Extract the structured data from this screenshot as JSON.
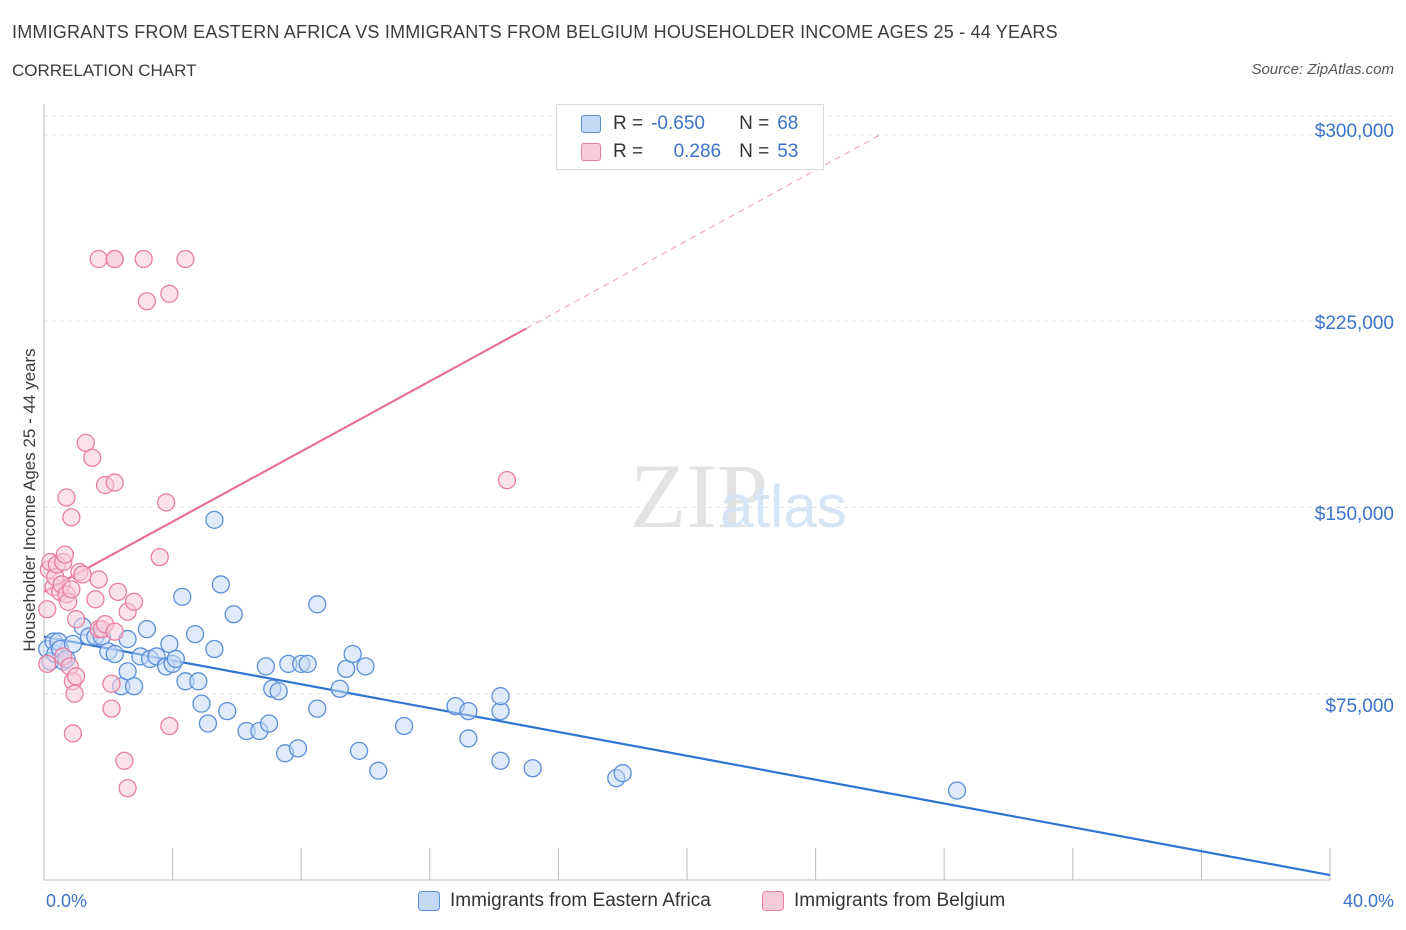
{
  "header": {
    "title": "IMMIGRANTS FROM EASTERN AFRICA VS IMMIGRANTS FROM BELGIUM HOUSEHOLDER INCOME AGES 25 - 44 YEARS",
    "subtitle": "CORRELATION CHART",
    "source": "Source: ZipAtlas.com"
  },
  "legend": {
    "rows": [
      {
        "r_label": "R =",
        "r_value": "-0.650",
        "n_label": "N =",
        "n_value": "68",
        "color": "#5b8fd8",
        "fill": "#c5d8f5"
      },
      {
        "r_label": "R =",
        "r_value": "0.286",
        "n_label": "N =",
        "n_value": "53",
        "color": "#e87fa3",
        "fill": "#f8cbd9"
      }
    ]
  },
  "watermark": {
    "zip": "ZIP",
    "atlas": "atlas"
  },
  "chart_data": {
    "type": "scatter",
    "title": "IMMIGRANTS FROM EASTERN AFRICA VS IMMIGRANTS FROM BELGIUM HOUSEHOLDER INCOME AGES 25 - 44 YEARS",
    "xlabel": "",
    "ylabel": "Householder Income Ages 25 - 44 years",
    "xlim": [
      0,
      40
    ],
    "ylim": [
      0,
      310000
    ],
    "x_tick_labels": [
      "0.0%",
      "40.0%"
    ],
    "y_ticks": [
      75000,
      150000,
      225000,
      300000
    ],
    "y_tick_labels": [
      "$75,000",
      "$150,000",
      "$225,000",
      "$300,000"
    ],
    "grid": true,
    "series": [
      {
        "name": "Immigrants from Eastern Africa",
        "color": "#5b8fd8",
        "fill": "#c5d8f5",
        "points": [
          [
            0.1,
            93000
          ],
          [
            0.2,
            88000
          ],
          [
            0.3,
            96000
          ],
          [
            0.35,
            91000
          ],
          [
            0.45,
            96000
          ],
          [
            0.5,
            93000
          ],
          [
            0.6,
            88000
          ],
          [
            0.7,
            89000
          ],
          [
            0.9,
            95000
          ],
          [
            1.2,
            102000
          ],
          [
            1.4,
            98000
          ],
          [
            1.6,
            98000
          ],
          [
            1.8,
            98000
          ],
          [
            2.0,
            92000
          ],
          [
            2.2,
            91000
          ],
          [
            2.4,
            78000
          ],
          [
            2.6,
            84000
          ],
          [
            2.6,
            97000
          ],
          [
            2.8,
            78000
          ],
          [
            3.0,
            90000
          ],
          [
            3.2,
            101000
          ],
          [
            3.3,
            89000
          ],
          [
            3.5,
            90000
          ],
          [
            3.8,
            86000
          ],
          [
            3.9,
            95000
          ],
          [
            4.0,
            87000
          ],
          [
            4.1,
            89000
          ],
          [
            4.3,
            114000
          ],
          [
            4.4,
            80000
          ],
          [
            4.7,
            99000
          ],
          [
            4.8,
            80000
          ],
          [
            4.9,
            71000
          ],
          [
            5.1,
            63000
          ],
          [
            5.3,
            93000
          ],
          [
            5.5,
            119000
          ],
          [
            5.9,
            107000
          ],
          [
            5.7,
            68000
          ],
          [
            6.3,
            60000
          ],
          [
            6.7,
            60000
          ],
          [
            6.9,
            86000
          ],
          [
            7.0,
            63000
          ],
          [
            7.1,
            77000
          ],
          [
            7.3,
            76000
          ],
          [
            7.5,
            51000
          ],
          [
            7.6,
            87000
          ],
          [
            7.9,
            53000
          ],
          [
            8.0,
            87000
          ],
          [
            8.2,
            87000
          ],
          [
            8.5,
            69000
          ],
          [
            8.5,
            111000
          ],
          [
            9.2,
            77000
          ],
          [
            9.4,
            85000
          ],
          [
            9.6,
            91000
          ],
          [
            9.8,
            52000
          ],
          [
            10.0,
            86000
          ],
          [
            10.4,
            44000
          ],
          [
            11.2,
            62000
          ],
          [
            12.8,
            70000
          ],
          [
            13.2,
            68000
          ],
          [
            13.2,
            57000
          ],
          [
            14.2,
            48000
          ],
          [
            14.2,
            68000
          ],
          [
            14.2,
            74000
          ],
          [
            15.2,
            45000
          ],
          [
            17.8,
            41000
          ],
          [
            18.0,
            43000
          ],
          [
            28.4,
            36000
          ],
          [
            5.3,
            145000
          ]
        ]
      },
      {
        "name": "Immigrants from Belgium",
        "color": "#e87fa3",
        "fill": "#f8cbd9",
        "points": [
          [
            0.1,
            87000
          ],
          [
            0.1,
            109000
          ],
          [
            0.15,
            125000
          ],
          [
            0.2,
            128000
          ],
          [
            0.3,
            118000
          ],
          [
            0.35,
            122000
          ],
          [
            0.4,
            127000
          ],
          [
            0.5,
            116000
          ],
          [
            0.55,
            119000
          ],
          [
            0.6,
            90000
          ],
          [
            0.6,
            128000
          ],
          [
            0.65,
            131000
          ],
          [
            0.7,
            115000
          ],
          [
            0.7,
            154000
          ],
          [
            0.75,
            112000
          ],
          [
            0.8,
            86000
          ],
          [
            0.85,
            146000
          ],
          [
            0.85,
            117000
          ],
          [
            0.9,
            59000
          ],
          [
            0.9,
            80000
          ],
          [
            0.95,
            75000
          ],
          [
            1.0,
            82000
          ],
          [
            1.0,
            105000
          ],
          [
            1.1,
            124000
          ],
          [
            1.2,
            123000
          ],
          [
            1.3,
            176000
          ],
          [
            1.5,
            170000
          ],
          [
            1.6,
            113000
          ],
          [
            1.7,
            121000
          ],
          [
            1.7,
            101000
          ],
          [
            1.8,
            101000
          ],
          [
            1.9,
            103000
          ],
          [
            1.9,
            159000
          ],
          [
            2.1,
            69000
          ],
          [
            2.1,
            79000
          ],
          [
            2.2,
            100000
          ],
          [
            2.3,
            116000
          ],
          [
            2.6,
            37000
          ],
          [
            1.7,
            250000
          ],
          [
            2.2,
            250000
          ],
          [
            2.2,
            250000
          ],
          [
            3.1,
            250000
          ],
          [
            4.4,
            250000
          ],
          [
            2.2,
            160000
          ],
          [
            2.5,
            48000
          ],
          [
            2.6,
            108000
          ],
          [
            2.8,
            112000
          ],
          [
            3.2,
            233000
          ],
          [
            3.6,
            130000
          ],
          [
            3.8,
            152000
          ],
          [
            3.9,
            236000
          ],
          [
            3.9,
            62000
          ],
          [
            14.4,
            161000
          ]
        ]
      }
    ],
    "trendlines": [
      {
        "series": "Immigrants from Eastern Africa",
        "from": [
          0,
          98000
        ],
        "to": [
          40,
          2000
        ],
        "style": "solid"
      },
      {
        "series": "Immigrants from Belgium",
        "from": [
          0,
          116000
        ],
        "to": [
          15,
          222000
        ],
        "style": "solid"
      },
      {
        "series": "Immigrants from Belgium",
        "from": [
          15,
          222000
        ],
        "to": [
          26,
          300000
        ],
        "style": "dashed"
      }
    ]
  }
}
